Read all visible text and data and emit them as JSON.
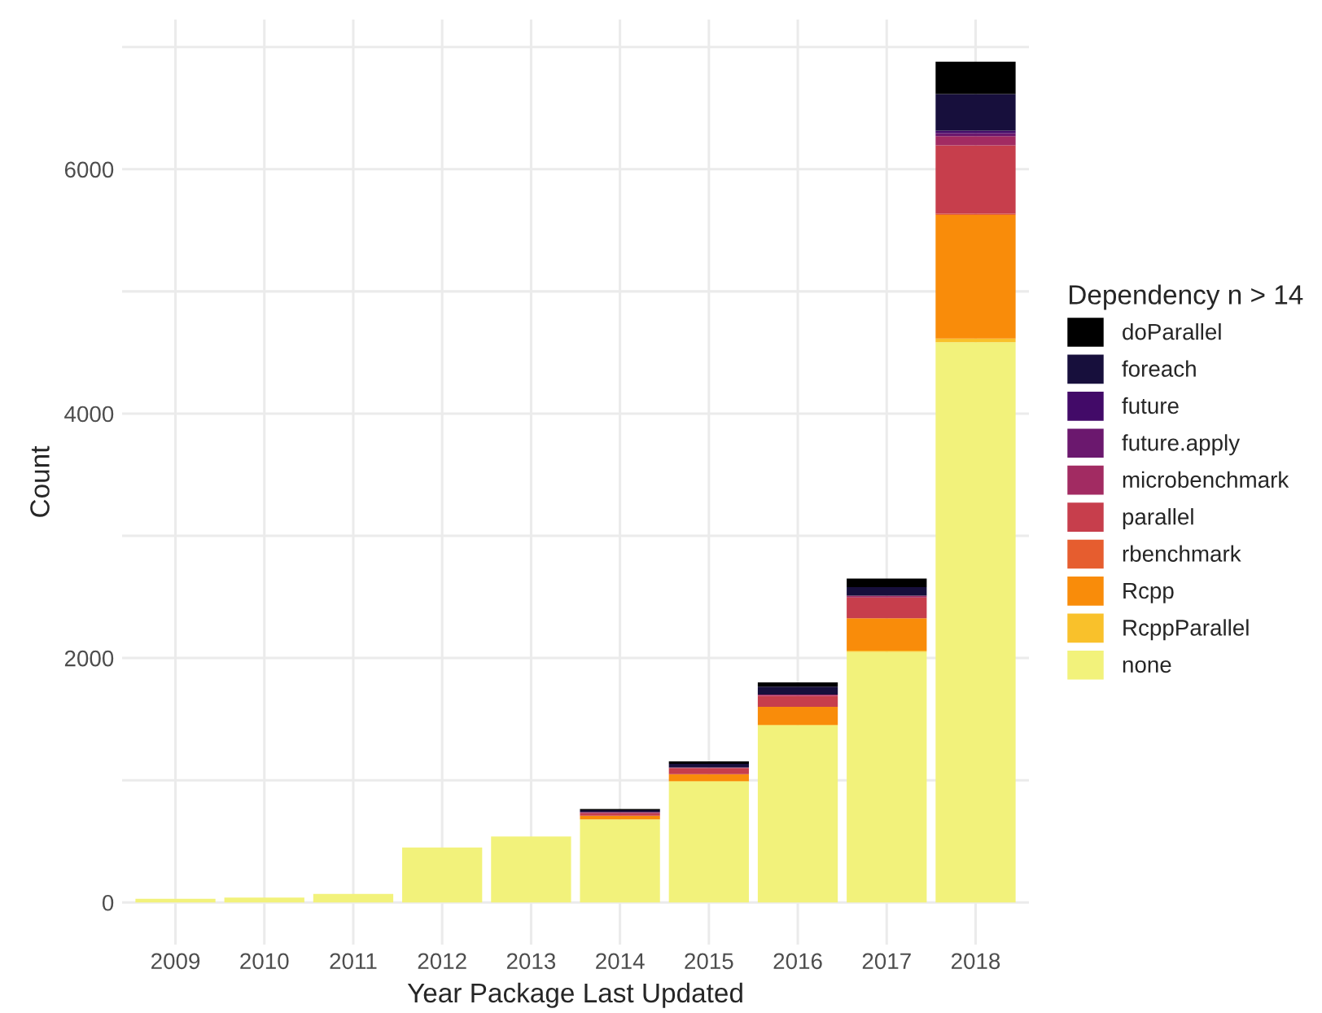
{
  "chart_data": {
    "type": "bar",
    "stacked": true,
    "xlabel": "Year Package Last Updated",
    "ylabel": "Count",
    "legend_title": "Dependency n > 14",
    "categories": [
      "2009",
      "2010",
      "2011",
      "2012",
      "2013",
      "2014",
      "2015",
      "2016",
      "2017",
      "2018"
    ],
    "series": [
      {
        "name": "none",
        "color": "#f2f27b",
        "values": [
          30,
          40,
          70,
          450,
          540,
          680,
          990,
          1450,
          2050,
          4585
        ]
      },
      {
        "name": "RcppParallel",
        "color": "#f9c12b",
        "values": [
          0,
          0,
          0,
          0,
          0,
          0,
          5,
          5,
          10,
          30
        ]
      },
      {
        "name": "Rcpp",
        "color": "#f98c0a",
        "values": [
          0,
          0,
          0,
          0,
          0,
          30,
          55,
          145,
          265,
          1010
        ]
      },
      {
        "name": "rbenchmark",
        "color": "#e65d2f",
        "values": [
          0,
          0,
          0,
          0,
          0,
          0,
          0,
          0,
          0,
          10
        ]
      },
      {
        "name": "parallel",
        "color": "#c73e4c",
        "values": [
          0,
          0,
          0,
          0,
          0,
          20,
          50,
          90,
          170,
          560
        ]
      },
      {
        "name": "microbenchmark",
        "color": "#a22b62",
        "values": [
          0,
          0,
          0,
          0,
          0,
          10,
          5,
          10,
          15,
          75
        ]
      },
      {
        "name": "future.apply",
        "color": "#6b186e",
        "values": [
          0,
          0,
          0,
          0,
          0,
          0,
          0,
          0,
          0,
          25
        ]
      },
      {
        "name": "future",
        "color": "#420a68",
        "values": [
          0,
          0,
          0,
          0,
          0,
          0,
          0,
          0,
          0,
          20
        ]
      },
      {
        "name": "foreach",
        "color": "#170f3c",
        "values": [
          0,
          0,
          0,
          0,
          0,
          15,
          30,
          65,
          70,
          300
        ]
      },
      {
        "name": "doParallel",
        "color": "#000000",
        "values": [
          0,
          0,
          0,
          0,
          0,
          10,
          20,
          35,
          70,
          265
        ]
      }
    ],
    "ylim": [
      -345,
      7225
    ],
    "yticks": [
      0,
      {
        "value": 1000,
        "label": null
      },
      2000,
      {
        "value": 3000,
        "label": null
      },
      4000,
      {
        "value": 5000,
        "label": null
      },
      6000,
      {
        "value": 7000,
        "label": null
      }
    ],
    "grid": true,
    "legend": "right"
  }
}
